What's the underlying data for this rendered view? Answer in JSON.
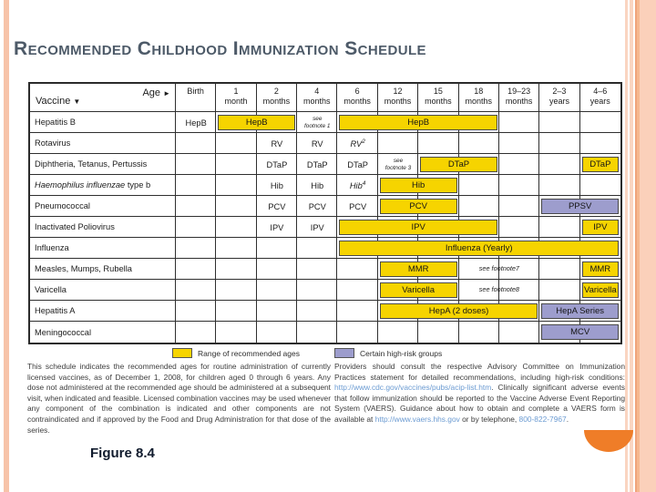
{
  "title": "Recommended Childhood Immunization Schedule",
  "figure_caption": "Figure 8.4",
  "colors": {
    "accent_yellow": "#f6d400",
    "accent_highrisk_purple": "#9d9dcd",
    "link_blue": "#6b9bd2",
    "stripe_salmon": "#f7c3a9",
    "semicircle_orange": "#ef7d28",
    "title_slate": "#4d5a68"
  },
  "icons": {
    "vaccine_sort": "down-triangle-icon",
    "age_direction": "right-triangle-icon"
  },
  "table": {
    "vaccine_header": "Vaccine",
    "vaccine_arrow": "▼",
    "age_header": "Age",
    "age_arrow": "►",
    "columns": [
      [
        "Birth"
      ],
      [
        "1",
        "month"
      ],
      [
        "2",
        "months"
      ],
      [
        "4",
        "months"
      ],
      [
        "6",
        "months"
      ],
      [
        "12",
        "months"
      ],
      [
        "15",
        "months"
      ],
      [
        "18",
        "months"
      ],
      [
        "19–23",
        "months"
      ],
      [
        "2–3",
        "years"
      ],
      [
        "4–6",
        "years"
      ]
    ],
    "rows": [
      {
        "label": [
          {
            "t": "Hepatitis B"
          }
        ],
        "cells": [
          {
            "col": 0,
            "t": "HepB"
          }
        ],
        "notes": [
          {
            "col": 3,
            "lines": [
              "see",
              "footnote 1"
            ]
          }
        ],
        "bars": [
          {
            "from": 1,
            "to": 2,
            "t": "HepB",
            "c": "range"
          },
          {
            "from": 4,
            "to": 7,
            "t": "HepB",
            "c": "range"
          }
        ]
      },
      {
        "label": [
          {
            "t": "Rotavirus"
          }
        ],
        "cells": [
          {
            "col": 2,
            "t": "RV"
          },
          {
            "col": 3,
            "t": "RV"
          },
          {
            "col": 4,
            "t": "RV",
            "sup": "2",
            "i": true
          }
        ],
        "notes": [],
        "bars": []
      },
      {
        "label": [
          {
            "t": "Diphtheria, Tetanus, Pertussis"
          }
        ],
        "cells": [
          {
            "col": 2,
            "t": "DTaP"
          },
          {
            "col": 3,
            "t": "DTaP"
          },
          {
            "col": 4,
            "t": "DTaP"
          }
        ],
        "notes": [
          {
            "col": 5,
            "lines": [
              "see",
              "footnote 3"
            ]
          }
        ],
        "bars": [
          {
            "from": 6,
            "to": 7,
            "t": "DTaP",
            "c": "range"
          },
          {
            "from": 10,
            "to": 10,
            "t": "DTaP",
            "c": "range"
          }
        ]
      },
      {
        "label": [
          {
            "t": "Haemophilus influenzae",
            "i": true
          },
          {
            "t": " type b"
          }
        ],
        "cells": [
          {
            "col": 2,
            "t": "Hib"
          },
          {
            "col": 3,
            "t": "Hib"
          },
          {
            "col": 4,
            "t": "Hib",
            "sup": "4",
            "i": true
          }
        ],
        "notes": [],
        "bars": [
          {
            "from": 5,
            "to": 6,
            "t": "Hib",
            "c": "range"
          }
        ]
      },
      {
        "label": [
          {
            "t": "Pneumococcal"
          }
        ],
        "cells": [
          {
            "col": 2,
            "t": "PCV"
          },
          {
            "col": 3,
            "t": "PCV"
          },
          {
            "col": 4,
            "t": "PCV"
          }
        ],
        "notes": [],
        "bars": [
          {
            "from": 5,
            "to": 6,
            "t": "PCV",
            "c": "range"
          },
          {
            "from": 9,
            "to": 10,
            "t": "PPSV",
            "c": "highrisk"
          }
        ]
      },
      {
        "label": [
          {
            "t": "Inactivated Poliovirus"
          }
        ],
        "cells": [
          {
            "col": 2,
            "t": "IPV"
          },
          {
            "col": 3,
            "t": "IPV"
          }
        ],
        "notes": [],
        "bars": [
          {
            "from": 4,
            "to": 7,
            "t": "IPV",
            "c": "range"
          },
          {
            "from": 10,
            "to": 10,
            "t": "IPV",
            "c": "range"
          }
        ]
      },
      {
        "label": [
          {
            "t": "Influenza"
          }
        ],
        "cells": [],
        "notes": [],
        "bars": [
          {
            "from": 4,
            "to": 10,
            "t": "Influenza (Yearly)",
            "c": "range"
          }
        ]
      },
      {
        "label": [
          {
            "t": "Measles, Mumps, Rubella"
          }
        ],
        "cells": [],
        "notes": [
          {
            "col": 7,
            "span": 2,
            "lines": [
              "see footnote7"
            ],
            "single": true
          }
        ],
        "bars": [
          {
            "from": 5,
            "to": 6,
            "t": "MMR",
            "c": "range"
          },
          {
            "from": 10,
            "to": 10,
            "t": "MMR",
            "c": "range"
          }
        ]
      },
      {
        "label": [
          {
            "t": "Varicella"
          }
        ],
        "cells": [],
        "notes": [
          {
            "col": 7,
            "span": 2,
            "lines": [
              "see footnote8"
            ],
            "single": true
          }
        ],
        "bars": [
          {
            "from": 5,
            "to": 6,
            "t": "Varicella",
            "c": "range"
          },
          {
            "from": 10,
            "to": 10,
            "t": "Varicella",
            "c": "range"
          }
        ]
      },
      {
        "label": [
          {
            "t": "Hepatitis A"
          }
        ],
        "cells": [],
        "notes": [],
        "bars": [
          {
            "from": 5,
            "to": 8,
            "t": "HepA (2 doses)",
            "c": "range"
          },
          {
            "from": 9,
            "to": 10,
            "t": "HepA Series",
            "c": "highrisk"
          }
        ]
      },
      {
        "label": [
          {
            "t": "Meningococcal"
          }
        ],
        "cells": [],
        "notes": [],
        "bars": [
          {
            "from": 9,
            "to": 10,
            "t": "MCV",
            "c": "highrisk"
          }
        ]
      }
    ]
  },
  "legend": {
    "items": [
      {
        "swatch": "range",
        "label": "Range of recommended ages"
      },
      {
        "swatch": "highrisk",
        "label": "Certain high-risk groups"
      }
    ]
  },
  "footer_left": {
    "text": "This schedule indicates the recommended ages for routine administration of currently licensed vaccines, as of December 1, 2008, for children aged 0 through 6 years. Any dose not administered at the recommended age should be administered at a subsequent visit, when indicated and feasible. Licensed combination vaccines may be used whenever any component of the combination is indicated and other components are not contraindicated and if approved by the Food and Drug Administration for that dose of the series."
  },
  "footer_right": {
    "segments": [
      {
        "t": "Providers should consult the respective Advisory Committee on Immunization Practices statement for detailed recommendations, including high-risk conditions: "
      },
      {
        "t": "http://www.cdc.gov/vaccines/pubs/acip-list.htm",
        "link": true
      },
      {
        "t": ". Clinically significant adverse events that follow immunization should be reported to the Vaccine Adverse Event Reporting System (VAERS). Guidance about how to obtain and complete a VAERS form is available at "
      },
      {
        "t": "http://www.vaers.hhs.gov",
        "link": true
      },
      {
        "t": " or by telephone, "
      },
      {
        "t": "800-822-7967",
        "link": true
      },
      {
        "t": "."
      }
    ]
  }
}
